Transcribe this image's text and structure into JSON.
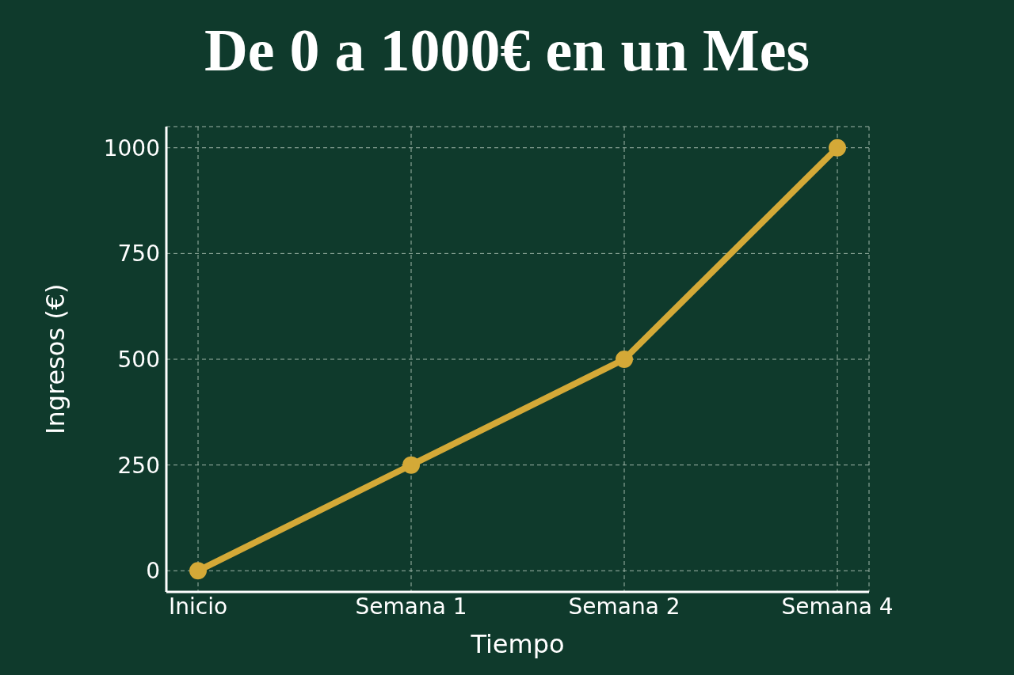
{
  "chart_data": {
    "type": "line",
    "title": "De 0 a 1000€ en un Mes",
    "xlabel": "Tiempo",
    "ylabel": "Ingresos (€)",
    "categories": [
      "Inicio",
      "Semana 1",
      "Semana 2",
      "Semana 4"
    ],
    "series": [
      {
        "color": "#d4a937",
        "values": [
          0,
          250,
          500,
          1000
        ]
      }
    ],
    "ylim": [
      -50,
      1050
    ],
    "yticks": [
      0,
      250,
      500,
      750,
      1000
    ],
    "grid": true,
    "marker": "circle",
    "line_style": "solid"
  }
}
